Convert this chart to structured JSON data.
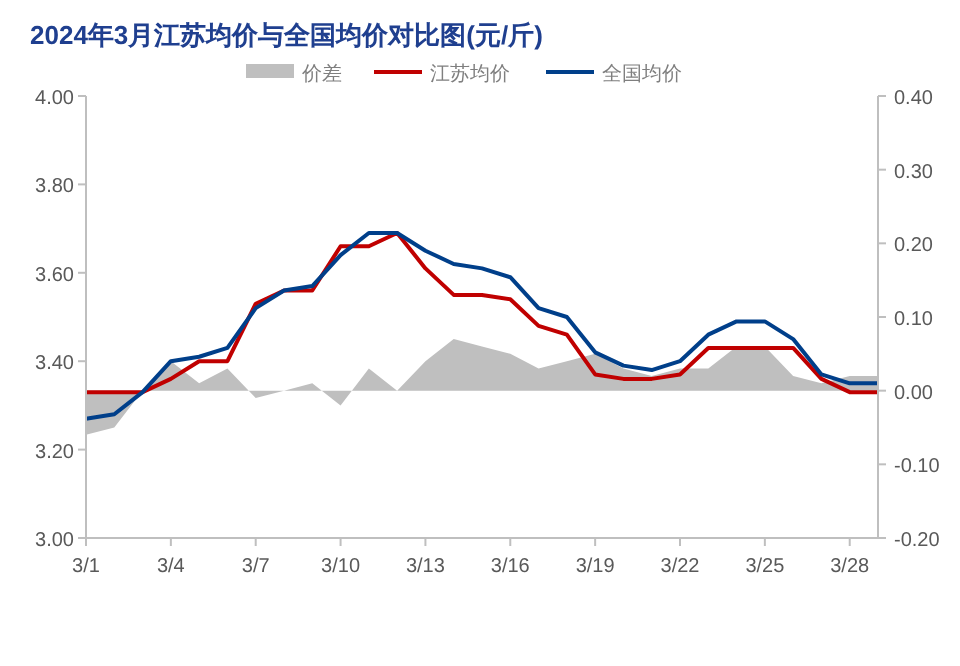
{
  "chart_data": {
    "type": "line",
    "title": "2024年3月江苏均价与全国均价对比图(元/斤)",
    "categories": [
      "3/1",
      null,
      null,
      "3/4",
      null,
      null,
      "3/7",
      null,
      null,
      "3/10",
      null,
      null,
      "3/13",
      null,
      null,
      "3/16",
      null,
      null,
      "3/19",
      null,
      null,
      "3/22",
      null,
      null,
      "3/25",
      null,
      null,
      "3/28",
      null
    ],
    "series": [
      {
        "name": "价差",
        "type": "area",
        "axis": "y2",
        "color": "#bfbfbf",
        "values": [
          -0.06,
          -0.05,
          0,
          0.04,
          0.01,
          0.03,
          -0.01,
          0,
          0.01,
          -0.02,
          0.03,
          0,
          0.04,
          0.07,
          0.06,
          0.05,
          0.03,
          0.04,
          0.05,
          0.03,
          0.02,
          0.03,
          0.03,
          0.06,
          0.06,
          0.02,
          0.01,
          0.02,
          0.02
        ]
      },
      {
        "name": "江苏均价",
        "color": "#c00000",
        "values": [
          3.33,
          3.33,
          3.33,
          3.36,
          3.4,
          3.4,
          3.53,
          3.56,
          3.56,
          3.66,
          3.66,
          3.69,
          3.61,
          3.55,
          3.55,
          3.54,
          3.48,
          3.46,
          3.37,
          3.36,
          3.36,
          3.37,
          3.43,
          3.43,
          3.43,
          3.43,
          3.36,
          3.33,
          3.33
        ]
      },
      {
        "name": "全国均价",
        "color": "#003f8a",
        "values": [
          3.27,
          3.28,
          3.33,
          3.4,
          3.41,
          3.43,
          3.52,
          3.56,
          3.57,
          3.64,
          3.69,
          3.69,
          3.65,
          3.62,
          3.61,
          3.59,
          3.52,
          3.5,
          3.42,
          3.39,
          3.38,
          3.4,
          3.46,
          3.49,
          3.49,
          3.45,
          3.37,
          3.35,
          3.35
        ]
      }
    ],
    "ylim": [
      3,
      4
    ],
    "yticks": [
      {
        "value": 3,
        "label": "3.00"
      },
      {
        "value": 3.2,
        "label": "3.20"
      },
      {
        "value": 3.4,
        "label": "3.40"
      },
      {
        "value": 3.6,
        "label": "3.60"
      },
      {
        "value": 3.8,
        "label": "3.80"
      },
      {
        "value": 4,
        "label": "4.00"
      }
    ],
    "y2lim": [
      -0.2,
      0.4
    ],
    "y2ticks": [
      {
        "value": -0.2,
        "label": "-0.20"
      },
      {
        "value": -0.1,
        "label": "-0.10"
      },
      {
        "value": 0,
        "label": "0.00"
      },
      {
        "value": 0.1,
        "label": "0.10"
      },
      {
        "value": 0.2,
        "label": "0.20"
      },
      {
        "value": 0.3,
        "label": "0.30"
      },
      {
        "value": 0.4,
        "label": "0.40"
      }
    ],
    "legend": "top",
    "grid": false
  }
}
